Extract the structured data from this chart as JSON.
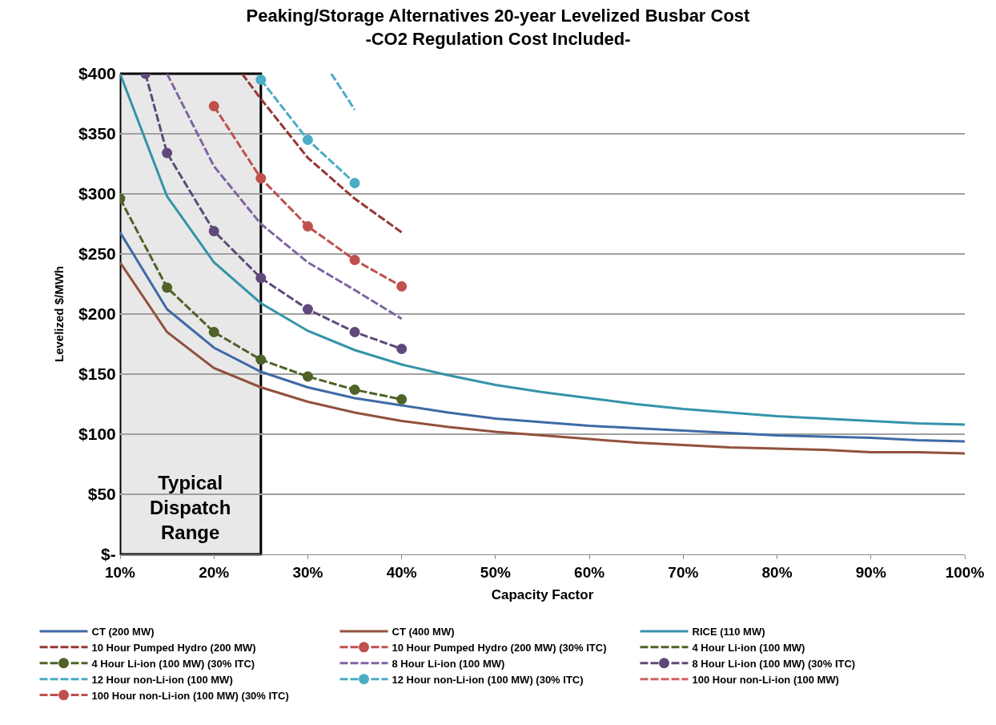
{
  "chart_data": {
    "type": "line",
    "title": "Peaking/Storage Alternatives 20-year Levelized Busbar Cost",
    "subtitle": "-CO2 Regulation Cost Included-",
    "xlabel": "Capacity Factor",
    "ylabel": "Levelized $/MWh",
    "x": [
      10,
      15,
      20,
      25,
      30,
      35,
      40,
      45,
      50,
      55,
      60,
      65,
      70,
      75,
      80,
      85,
      90,
      95,
      100
    ],
    "series": [
      {
        "name": "CT (200 MW)",
        "color": "#3f6aa6",
        "marker": "none",
        "line_style": "solid",
        "values": [
          268,
          204,
          172,
          152,
          139,
          130,
          124,
          118,
          113,
          110,
          107,
          105,
          103,
          101,
          99,
          98,
          97,
          95,
          94
        ]
      },
      {
        "name": "CT (400 MW)",
        "color": "#91513d",
        "marker": "none",
        "line_style": "solid",
        "values": [
          243,
          185,
          155,
          139,
          127,
          118,
          111,
          106,
          102,
          99,
          96,
          93,
          91,
          89,
          88,
          87,
          85,
          85,
          84
        ]
      },
      {
        "name": "RICE (110 MW)",
        "color": "#3593a9",
        "marker": "none",
        "line_style": "solid",
        "values": [
          400,
          298,
          243,
          209,
          186,
          170,
          158,
          149,
          141,
          135,
          130,
          125,
          121,
          118,
          115,
          113,
          111,
          109,
          108
        ]
      },
      {
        "name": "10 Hour Pumped Hydro (200 MW)",
        "color": "#953735",
        "marker": "none",
        "line_style": "dashed",
        "x": [
          23,
          25,
          30,
          35,
          40
        ],
        "values": [
          400,
          379,
          330,
          296,
          268
        ]
      },
      {
        "name": "10 Hour Pumped Hydro (200 MW) (30% ITC)",
        "color": "#c0504d",
        "marker": "circle",
        "line_style": "dashed",
        "x": [
          20,
          25,
          30,
          35,
          40
        ],
        "values": [
          373,
          313,
          273,
          245,
          223
        ]
      },
      {
        "name": "4 Hour Li-ion (100 MW)",
        "color": "#4f6228",
        "marker": "none",
        "line_style": "dashed",
        "values": [
          null,
          null,
          null,
          null,
          null,
          null,
          null,
          null,
          null,
          null,
          null,
          null,
          null,
          null,
          null,
          null,
          null,
          null,
          null
        ]
      },
      {
        "name": "4 Hour Li-ion (100 MW) (30% ITC)",
        "color": "#4f6228",
        "marker": "circle",
        "line_style": "dashed",
        "x": [
          10,
          15,
          20,
          25,
          30,
          35,
          40
        ],
        "values": [
          296,
          222,
          185,
          162,
          148,
          137,
          129
        ]
      },
      {
        "name": "8 Hour Li-ion (100 MW)",
        "color": "#8064a2",
        "marker": "none",
        "line_style": "dashed",
        "x": [
          15,
          20,
          25,
          30,
          35,
          40
        ],
        "values": [
          400,
          323,
          275,
          243,
          220,
          196
        ]
      },
      {
        "name": "8 Hour Li-ion (100 MW) (30% ITC)",
        "color": "#5f497a",
        "marker": "circle",
        "line_style": "dashed",
        "x": [
          12.7,
          15,
          20,
          25,
          30,
          35,
          40
        ],
        "values": [
          400,
          334,
          269,
          230,
          204,
          185,
          171
        ]
      },
      {
        "name": "12 Hour non-Li-ion (100 MW)",
        "color": "#4bacc6",
        "marker": "none",
        "line_style": "dashed",
        "x": [
          32.5,
          35
        ],
        "values": [
          400,
          370
        ]
      },
      {
        "name": "12 Hour non-Li-ion (100 MW) (30% ITC)",
        "color": "#4bacc6",
        "marker": "circle",
        "line_style": "dashed",
        "x": [
          25,
          30,
          35
        ],
        "values": [
          395,
          345,
          309
        ]
      },
      {
        "name": "100 Hour non-Li-ion (100 MW)",
        "color": "#d0625f",
        "marker": "none",
        "line_style": "dashed",
        "values": [
          null,
          null,
          null,
          null,
          null,
          null,
          null,
          null,
          null,
          null,
          null,
          null,
          null,
          null,
          null,
          null,
          null,
          null,
          null
        ]
      },
      {
        "name": "100 Hour non-Li-ion (100 MW) (30% ITC)",
        "color": "#c0504d",
        "marker": "circle",
        "line_style": "dashed",
        "values": [
          null,
          null,
          null,
          null,
          null,
          null,
          null,
          null,
          null,
          null,
          null,
          null,
          null,
          null,
          null,
          null,
          null,
          null,
          null
        ]
      }
    ],
    "xlim": [
      10,
      100
    ],
    "xticks": [
      {
        "value": 10,
        "label": "10%"
      },
      {
        "value": 20,
        "label": "20%"
      },
      {
        "value": 30,
        "label": "30%"
      },
      {
        "value": 40,
        "label": "40%"
      },
      {
        "value": 50,
        "label": "50%"
      },
      {
        "value": 60,
        "label": "60%"
      },
      {
        "value": 70,
        "label": "70%"
      },
      {
        "value": 80,
        "label": "80%"
      },
      {
        "value": 90,
        "label": "90%"
      },
      {
        "value": 100,
        "label": "100%"
      }
    ],
    "ylim": [
      0,
      400
    ],
    "yticks": [
      {
        "value": 0,
        "label": "$-"
      },
      {
        "value": 50,
        "label": "$50"
      },
      {
        "value": 100,
        "label": "$100"
      },
      {
        "value": 150,
        "label": "$150"
      },
      {
        "value": 200,
        "label": "$200"
      },
      {
        "value": 250,
        "label": "$250"
      },
      {
        "value": 300,
        "label": "$300"
      },
      {
        "value": 350,
        "label": "$350"
      },
      {
        "value": 400,
        "label": "$400"
      }
    ],
    "bands": [
      {
        "axis": "x",
        "from": 10,
        "to": 25,
        "label": "Typical Dispatch Range",
        "color": "#e8e8e8"
      }
    ],
    "grid": "y",
    "legend": "bottom"
  }
}
